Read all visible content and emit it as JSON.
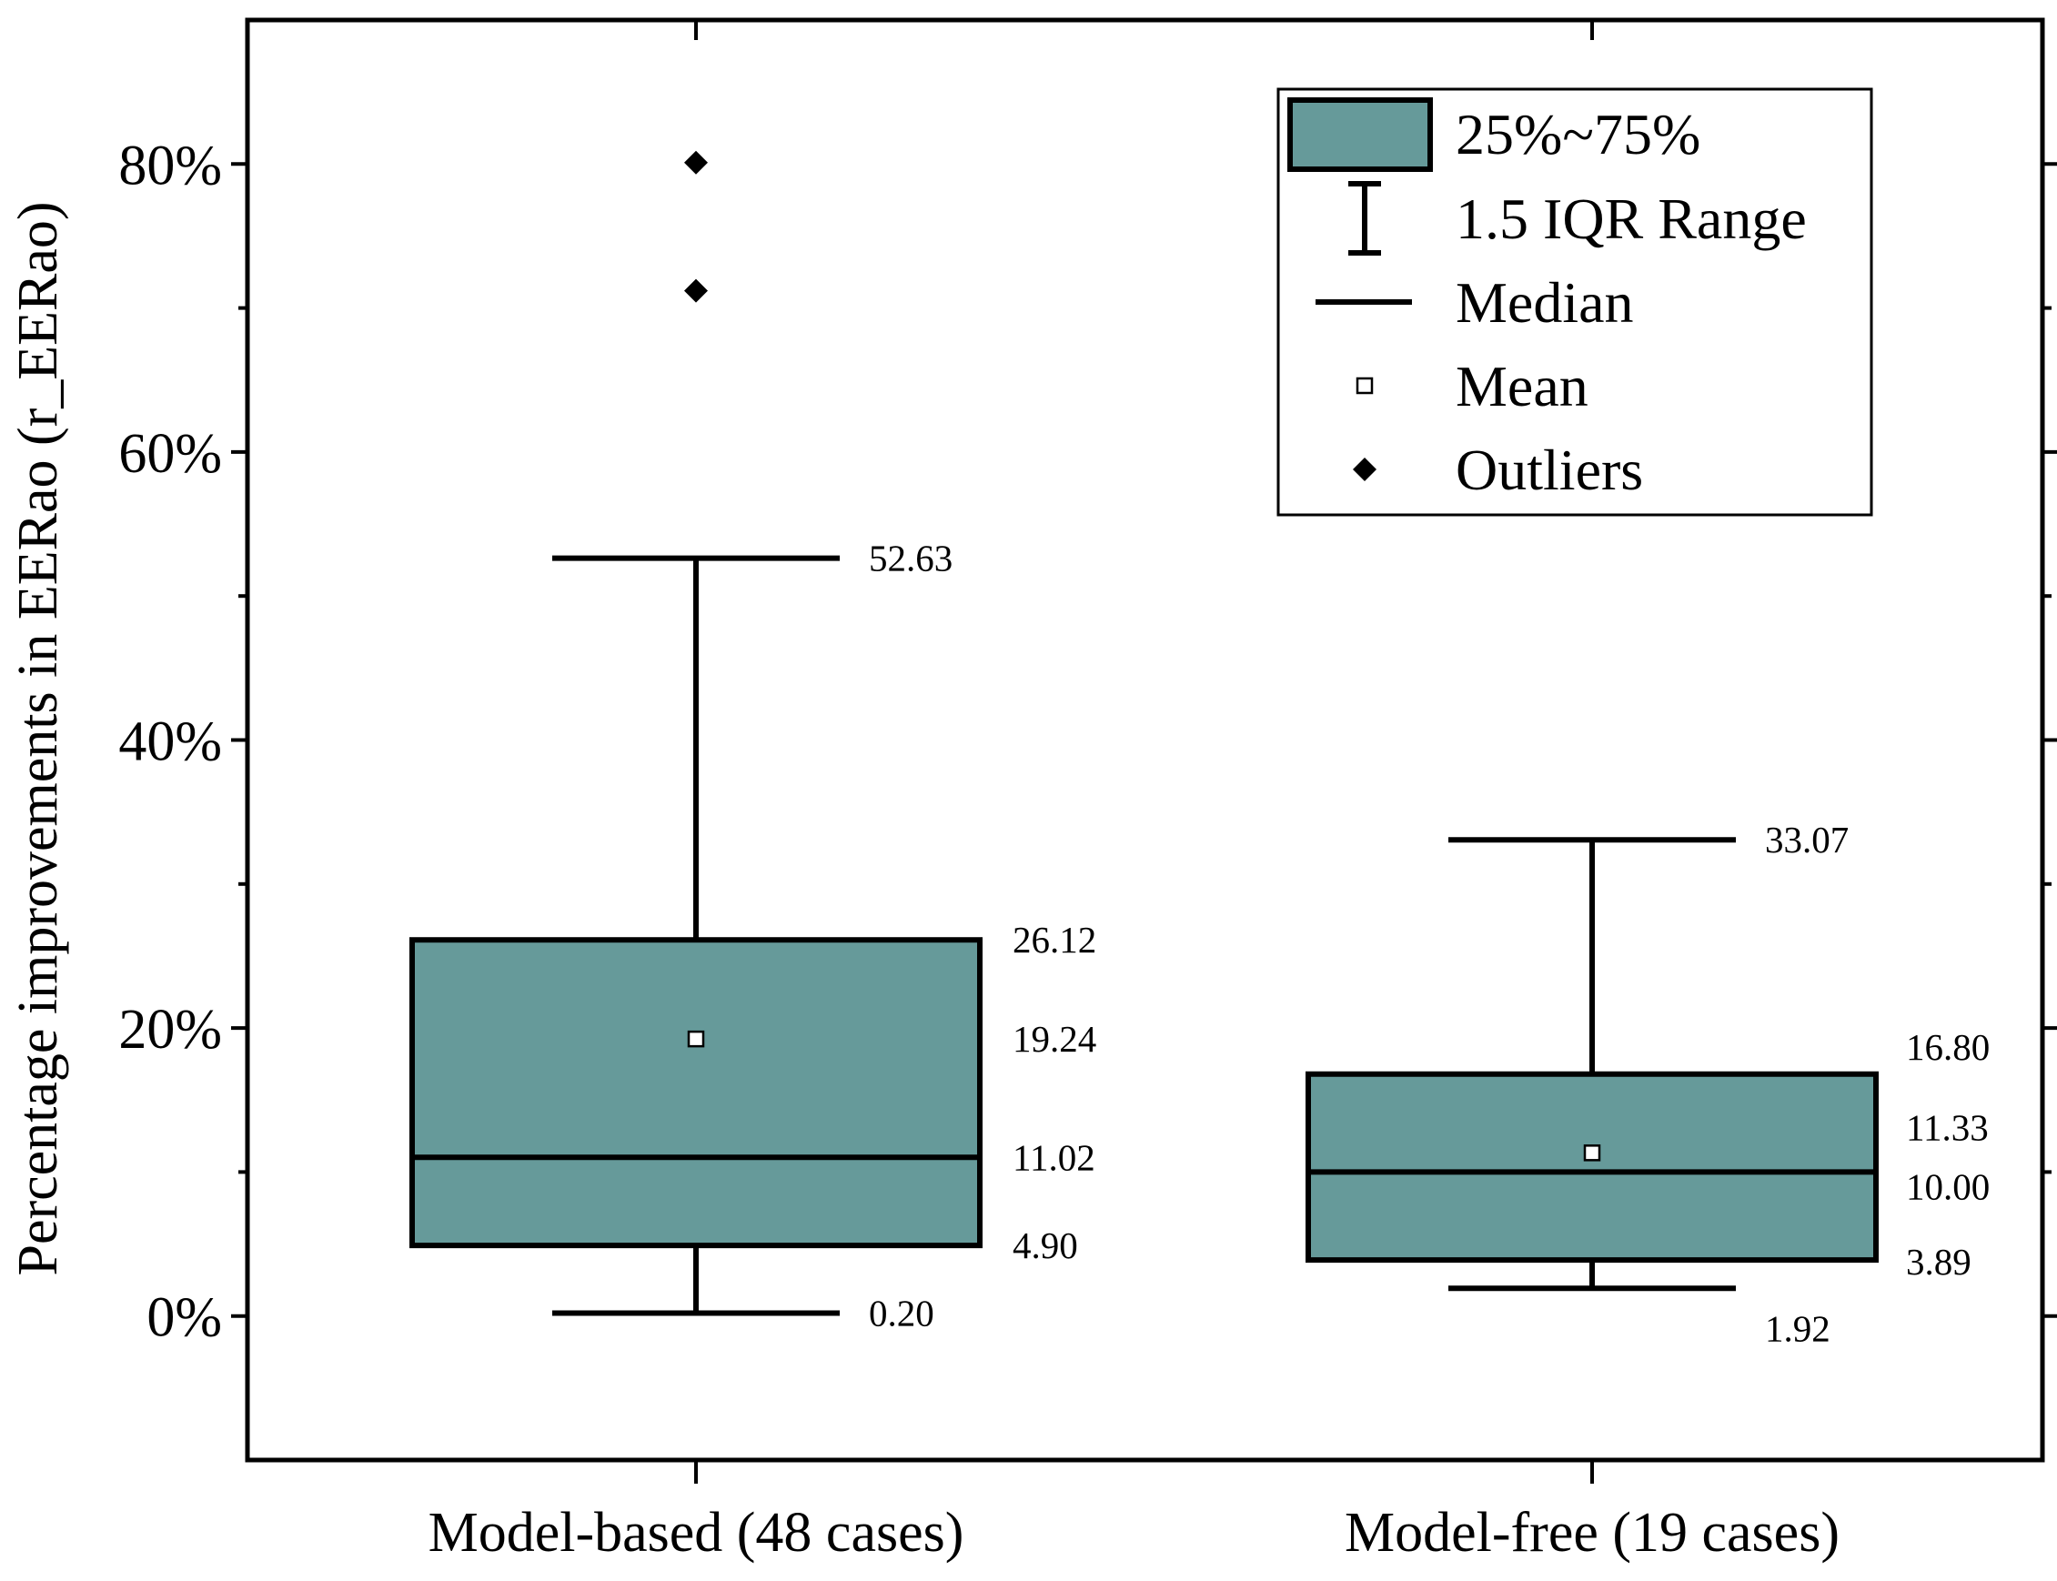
{
  "chart_data": {
    "type": "boxplot",
    "title": "",
    "xlabel": "",
    "ylabel": "Percentage improvements in EERao (r_EERao)",
    "ylim": [
      -10,
      90
    ],
    "yticks": [
      0,
      20,
      40,
      60,
      80
    ],
    "ytick_labels": [
      "0%",
      "20%",
      "40%",
      "60%",
      "80%"
    ],
    "ytick_minor": [
      10,
      30,
      50,
      70
    ],
    "grid": false,
    "box_color": "#669a9a",
    "categories": [
      "Model-based (48 cases)",
      "Model-free (19 cases)"
    ],
    "series": [
      {
        "name": "Model-based (48 cases)",
        "whisker_low": 0.2,
        "q1": 4.9,
        "median": 11.02,
        "mean": 19.24,
        "q3": 26.12,
        "whisker_high": 52.63,
        "outliers": [
          71.2,
          80.1
        ],
        "labels": {
          "whisker_high": "52.63",
          "q3": "26.12",
          "mean": "19.24",
          "median": "11.02",
          "q1": "4.90",
          "whisker_low": "0.20"
        }
      },
      {
        "name": "Model-free (19 cases)",
        "whisker_low": 1.92,
        "q1": 3.89,
        "median": 10.0,
        "mean": 11.33,
        "q3": 16.8,
        "whisker_high": 33.07,
        "outliers": [],
        "labels": {
          "whisker_high": "33.07",
          "q3": "16.80",
          "mean": "11.33",
          "median": "10.00",
          "q1": "3.89",
          "whisker_low": "1.92"
        }
      }
    ],
    "legend": {
      "position": "top-right",
      "entries": [
        {
          "symbol": "box",
          "label": "25%~75%"
        },
        {
          "symbol": "range",
          "label": "1.5 IQR Range"
        },
        {
          "symbol": "line",
          "label": "Median"
        },
        {
          "symbol": "square",
          "label": "Mean"
        },
        {
          "symbol": "diamond",
          "label": "Outliers"
        }
      ]
    }
  }
}
